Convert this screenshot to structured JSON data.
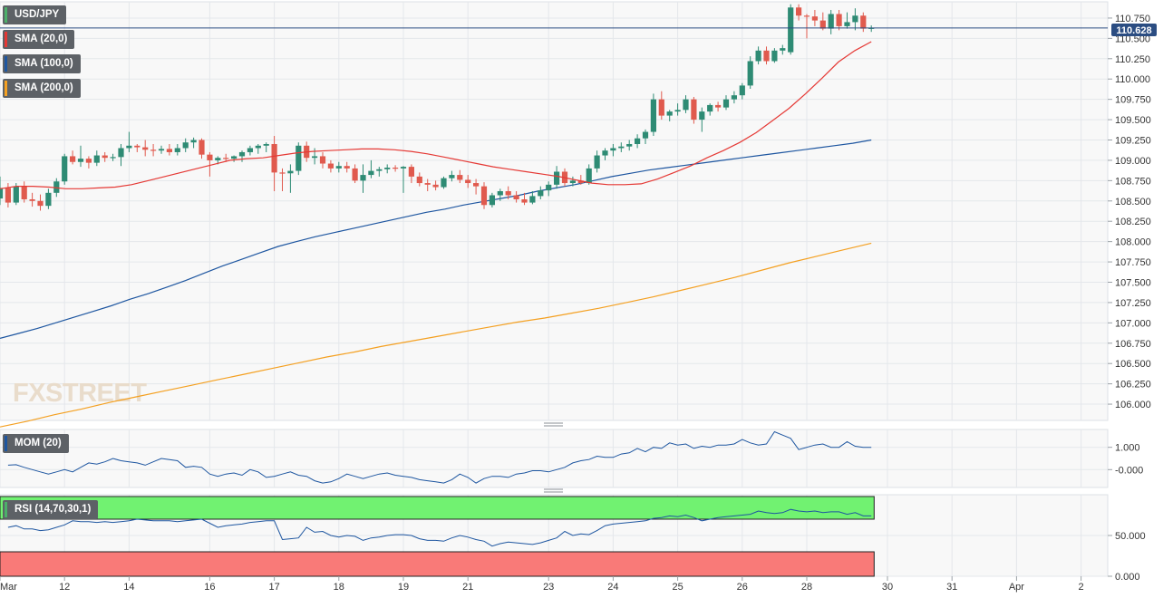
{
  "chart_data": {
    "type": "candlestick",
    "symbol": "USD/JPY",
    "last_price": "110.628",
    "price_axis": {
      "ticks": [
        "110.750",
        "110.500",
        "110.250",
        "110.000",
        "109.750",
        "109.500",
        "109.250",
        "109.000",
        "108.750",
        "108.500",
        "108.250",
        "108.000",
        "107.750",
        "107.500",
        "107.250",
        "107.000",
        "106.750",
        "106.500",
        "106.250",
        "106.000"
      ],
      "range": [
        105.8,
        110.95
      ]
    },
    "date_ticks": [
      {
        "label": "Mar",
        "slot": 0
      },
      {
        "label": "12",
        "slot": 8
      },
      {
        "label": "14",
        "slot": 16
      },
      {
        "label": "16",
        "slot": 26
      },
      {
        "label": "17",
        "slot": 34
      },
      {
        "label": "18",
        "slot": 42
      },
      {
        "label": "19",
        "slot": 50
      },
      {
        "label": "21",
        "slot": 58
      },
      {
        "label": "23",
        "slot": 68
      },
      {
        "label": "24",
        "slot": 76
      },
      {
        "label": "25",
        "slot": 84
      },
      {
        "label": "26",
        "slot": 92
      },
      {
        "label": "28",
        "slot": 100
      },
      {
        "label": "30",
        "slot": 110
      },
      {
        "label": "31",
        "slot": 118
      },
      {
        "label": "Apr",
        "slot": 126
      },
      {
        "label": "2",
        "slot": 134
      }
    ],
    "candles_ohlc": [
      [
        108.53,
        108.8,
        108.45,
        108.66
      ],
      [
        108.66,
        108.72,
        108.42,
        108.48
      ],
      [
        108.48,
        108.72,
        108.45,
        108.68
      ],
      [
        108.68,
        108.74,
        108.48,
        108.52
      ],
      [
        108.52,
        108.6,
        108.43,
        108.5
      ],
      [
        108.5,
        108.58,
        108.38,
        108.44
      ],
      [
        108.44,
        108.65,
        108.4,
        108.6
      ],
      [
        108.6,
        108.78,
        108.55,
        108.74
      ],
      [
        108.74,
        109.08,
        108.7,
        109.05
      ],
      [
        109.05,
        109.12,
        108.95,
        108.98
      ],
      [
        108.98,
        109.18,
        108.92,
        109.02
      ],
      [
        109.02,
        109.05,
        108.9,
        108.97
      ],
      [
        108.97,
        109.12,
        108.93,
        109.06
      ],
      [
        109.06,
        109.1,
        108.98,
        109.03
      ],
      [
        109.03,
        109.08,
        108.99,
        109.04
      ],
      [
        109.04,
        109.2,
        108.93,
        109.15
      ],
      [
        109.15,
        109.35,
        109.1,
        109.18
      ],
      [
        109.18,
        109.2,
        109.1,
        109.16
      ],
      [
        109.16,
        109.25,
        109.05,
        109.13
      ],
      [
        109.13,
        109.2,
        109.05,
        109.12
      ],
      [
        109.12,
        109.18,
        109.08,
        109.14
      ],
      [
        109.14,
        109.2,
        109.06,
        109.1
      ],
      [
        109.1,
        109.2,
        109.06,
        109.15
      ],
      [
        109.15,
        109.27,
        109.1,
        109.22
      ],
      [
        109.22,
        109.28,
        109.15,
        109.25
      ],
      [
        109.25,
        109.27,
        109.02,
        109.07
      ],
      [
        109.07,
        109.1,
        108.8,
        109.0
      ],
      [
        109.0,
        109.05,
        108.95,
        109.03
      ],
      [
        109.03,
        109.08,
        108.98,
        109.02
      ],
      [
        109.02,
        109.06,
        108.98,
        109.05
      ],
      [
        109.05,
        109.12,
        108.98,
        109.1
      ],
      [
        109.1,
        109.18,
        109.06,
        109.15
      ],
      [
        109.15,
        109.2,
        109.08,
        109.18
      ],
      [
        109.18,
        109.22,
        109.1,
        109.2
      ],
      [
        109.2,
        109.3,
        108.62,
        108.85
      ],
      [
        108.85,
        108.9,
        108.62,
        108.84
      ],
      [
        108.84,
        108.95,
        108.6,
        108.87
      ],
      [
        108.87,
        109.22,
        108.82,
        109.18
      ],
      [
        109.18,
        109.23,
        108.98,
        109.03
      ],
      [
        109.03,
        109.15,
        108.95,
        109.05
      ],
      [
        109.05,
        109.1,
        108.9,
        108.96
      ],
      [
        108.96,
        109.0,
        108.85,
        108.9
      ],
      [
        108.9,
        108.98,
        108.85,
        108.93
      ],
      [
        108.93,
        108.98,
        108.85,
        108.9
      ],
      [
        108.9,
        108.95,
        108.72,
        108.75
      ],
      [
        108.75,
        108.95,
        108.6,
        108.82
      ],
      [
        108.82,
        109.0,
        108.78,
        108.87
      ],
      [
        108.87,
        108.92,
        108.8,
        108.89
      ],
      [
        108.89,
        108.95,
        108.84,
        108.91
      ],
      [
        108.91,
        108.94,
        108.86,
        108.9
      ],
      [
        108.9,
        108.93,
        108.6,
        108.92
      ],
      [
        108.92,
        108.95,
        108.72,
        108.8
      ],
      [
        108.8,
        108.85,
        108.68,
        108.72
      ],
      [
        108.72,
        108.77,
        108.62,
        108.7
      ],
      [
        108.7,
        108.75,
        108.63,
        108.67
      ],
      [
        108.67,
        108.8,
        108.65,
        108.78
      ],
      [
        108.78,
        108.87,
        108.74,
        108.82
      ],
      [
        108.82,
        108.88,
        108.72,
        108.76
      ],
      [
        108.76,
        108.82,
        108.66,
        108.72
      ],
      [
        108.72,
        108.77,
        108.58,
        108.68
      ],
      [
        108.68,
        108.73,
        108.4,
        108.45
      ],
      [
        108.45,
        108.6,
        108.42,
        108.57
      ],
      [
        108.57,
        108.65,
        108.5,
        108.62
      ],
      [
        108.62,
        108.68,
        108.52,
        108.57
      ],
      [
        108.57,
        108.62,
        108.48,
        108.52
      ],
      [
        108.52,
        108.6,
        108.45,
        108.48
      ],
      [
        108.48,
        108.62,
        108.46,
        108.56
      ],
      [
        108.56,
        108.68,
        108.52,
        108.63
      ],
      [
        108.63,
        108.74,
        108.56,
        108.7
      ],
      [
        108.7,
        108.93,
        108.65,
        108.86
      ],
      [
        108.86,
        108.9,
        108.68,
        108.72
      ],
      [
        108.72,
        108.8,
        108.68,
        108.75
      ],
      [
        108.75,
        108.82,
        108.7,
        108.72
      ],
      [
        108.72,
        108.95,
        108.7,
        108.9
      ],
      [
        108.9,
        109.12,
        108.85,
        109.06
      ],
      [
        109.06,
        109.15,
        109.0,
        109.12
      ],
      [
        109.12,
        109.2,
        109.05,
        109.15
      ],
      [
        109.15,
        109.22,
        109.1,
        109.17
      ],
      [
        109.17,
        109.25,
        109.12,
        109.2
      ],
      [
        109.2,
        109.32,
        109.15,
        109.27
      ],
      [
        109.27,
        109.38,
        109.2,
        109.35
      ],
      [
        109.35,
        109.82,
        109.3,
        109.75
      ],
      [
        109.75,
        109.85,
        109.5,
        109.55
      ],
      [
        109.55,
        109.62,
        109.48,
        109.6
      ],
      [
        109.6,
        109.7,
        109.55,
        109.62
      ],
      [
        109.62,
        109.8,
        109.58,
        109.75
      ],
      [
        109.75,
        109.78,
        109.45,
        109.5
      ],
      [
        109.5,
        109.65,
        109.35,
        109.6
      ],
      [
        109.6,
        109.7,
        109.55,
        109.68
      ],
      [
        109.68,
        109.72,
        109.6,
        109.65
      ],
      [
        109.65,
        109.8,
        109.62,
        109.75
      ],
      [
        109.75,
        109.85,
        109.7,
        109.8
      ],
      [
        109.8,
        109.95,
        109.75,
        109.92
      ],
      [
        109.92,
        110.28,
        109.88,
        110.22
      ],
      [
        110.22,
        110.4,
        110.18,
        110.35
      ],
      [
        110.35,
        110.4,
        110.18,
        110.22
      ],
      [
        110.22,
        110.38,
        110.2,
        110.35
      ],
      [
        110.35,
        110.42,
        110.3,
        110.38
      ],
      [
        110.33,
        110.92,
        110.3,
        110.88
      ],
      [
        110.88,
        110.92,
        110.72,
        110.78
      ],
      [
        110.78,
        110.8,
        110.5,
        110.77
      ],
      [
        110.77,
        110.85,
        110.65,
        110.72
      ],
      [
        110.72,
        110.82,
        110.6,
        110.62
      ],
      [
        110.62,
        110.85,
        110.55,
        110.8
      ],
      [
        110.8,
        110.85,
        110.6,
        110.65
      ],
      [
        110.65,
        110.82,
        110.62,
        110.7
      ],
      [
        110.7,
        110.87,
        110.6,
        110.78
      ],
      [
        110.78,
        110.82,
        110.58,
        110.62
      ],
      [
        110.62,
        110.66,
        110.58,
        110.63
      ]
    ],
    "series": [
      {
        "name": "SMA (20,0)",
        "color": "#e53935",
        "values": [
          108.65,
          108.68,
          108.68,
          108.67,
          108.65,
          108.65,
          108.66,
          108.67,
          108.7,
          108.75,
          108.8,
          108.85,
          108.9,
          108.95,
          109.0,
          109.02,
          109.03,
          109.06,
          109.09,
          109.11,
          109.12,
          109.13,
          109.14,
          109.14,
          109.13,
          109.11,
          109.08,
          109.04,
          109.0,
          108.96,
          108.92,
          108.89,
          108.86,
          108.83,
          108.8,
          108.76,
          108.72,
          108.7,
          108.7,
          108.71,
          108.77,
          108.85,
          108.93,
          109.03,
          109.12,
          109.22,
          109.34,
          109.49,
          109.64,
          109.82,
          110.01,
          110.21,
          110.35,
          110.46
        ]
      },
      {
        "name": "SMA (100,0)",
        "color": "#1e56a0",
        "values": [
          106.81,
          106.87,
          106.93,
          107.0,
          107.07,
          107.14,
          107.21,
          107.29,
          107.36,
          107.44,
          107.52,
          107.61,
          107.7,
          107.78,
          107.86,
          107.94,
          108.0,
          108.06,
          108.11,
          108.16,
          108.21,
          108.26,
          108.31,
          108.36,
          108.4,
          108.45,
          108.49,
          108.53,
          108.57,
          108.62,
          108.66,
          108.7,
          108.75,
          108.8,
          108.84,
          108.88,
          108.91,
          108.94,
          108.97,
          109.0,
          109.03,
          109.06,
          109.09,
          109.12,
          109.15,
          109.18,
          109.21,
          109.25
        ]
      },
      {
        "name": "SMA (200,0)",
        "color": "#f4a021",
        "values": [
          105.72,
          105.79,
          105.87,
          105.94,
          106.02,
          106.09,
          106.16,
          106.23,
          106.3,
          106.37,
          106.44,
          106.51,
          106.58,
          106.64,
          106.71,
          106.77,
          106.83,
          106.89,
          106.95,
          107.01,
          107.06,
          107.12,
          107.18,
          107.25,
          107.32,
          107.4,
          107.48,
          107.56,
          107.65,
          107.74,
          107.82,
          107.9,
          107.98
        ]
      }
    ],
    "momentum": {
      "name": "MOM (20)",
      "ticks": [
        "1.000",
        "-0.000"
      ],
      "range": [
        -0.8,
        1.8
      ],
      "values": [
        0.2,
        0.22,
        0.1,
        0.0,
        -0.1,
        -0.2,
        -0.1,
        0.0,
        -0.1,
        0.1,
        0.3,
        0.25,
        0.35,
        0.5,
        0.4,
        0.35,
        0.3,
        0.2,
        0.35,
        0.5,
        0.45,
        0.4,
        0.1,
        0.15,
        0.1,
        -0.2,
        -0.3,
        -0.2,
        -0.15,
        -0.25,
        0.0,
        -0.1,
        -0.35,
        -0.3,
        -0.2,
        -0.1,
        -0.25,
        -0.3,
        -0.5,
        -0.6,
        -0.55,
        -0.4,
        -0.2,
        -0.3,
        -0.4,
        -0.3,
        -0.2,
        -0.15,
        -0.25,
        -0.3,
        -0.35,
        -0.45,
        -0.5,
        -0.55,
        -0.6,
        -0.45,
        -0.2,
        -0.35,
        -0.6,
        -0.4,
        -0.3,
        -0.3,
        -0.35,
        -0.2,
        -0.15,
        -0.05,
        -0.05,
        -0.1,
        0.0,
        0.1,
        0.3,
        0.4,
        0.45,
        0.6,
        0.55,
        0.55,
        0.7,
        0.75,
        0.95,
        0.8,
        1.0,
        0.95,
        1.2,
        1.1,
        1.15,
        0.95,
        1.05,
        1.0,
        1.1,
        1.1,
        1.15,
        1.35,
        1.2,
        1.1,
        1.15,
        1.7,
        1.55,
        1.4,
        0.9,
        1.0,
        1.1,
        1.15,
        1.0,
        1.0,
        1.25,
        1.05,
        1.0,
        1.0
      ]
    },
    "rsi": {
      "name": "RSI (14,70,30,1)",
      "ticks": [
        "50.000",
        "0.000"
      ],
      "range": [
        0,
        100
      ],
      "overbought_color": "#71f271",
      "oversold_color": "#f97a78",
      "values": [
        60,
        62,
        58,
        58,
        56,
        57,
        60,
        63,
        68,
        67,
        67,
        66,
        67,
        66,
        67,
        68,
        70,
        69,
        68,
        68,
        68,
        67,
        68,
        69,
        70,
        65,
        60,
        62,
        63,
        64,
        66,
        67,
        68,
        68,
        45,
        46,
        47,
        60,
        54,
        55,
        50,
        48,
        50,
        49,
        44,
        47,
        48,
        50,
        51,
        51,
        50,
        46,
        44,
        44,
        43,
        47,
        50,
        48,
        45,
        43,
        37,
        40,
        42,
        41,
        40,
        39,
        41,
        44,
        47,
        55,
        50,
        52,
        51,
        56,
        62,
        64,
        65,
        66,
        67,
        68,
        71,
        72,
        74,
        73,
        75,
        72,
        68,
        70,
        72,
        73,
        74,
        75,
        76,
        80,
        78,
        77,
        78,
        82,
        80,
        79,
        80,
        78,
        79,
        79,
        76,
        78,
        74,
        74
      ]
    }
  },
  "watermark": "FXSTREET"
}
